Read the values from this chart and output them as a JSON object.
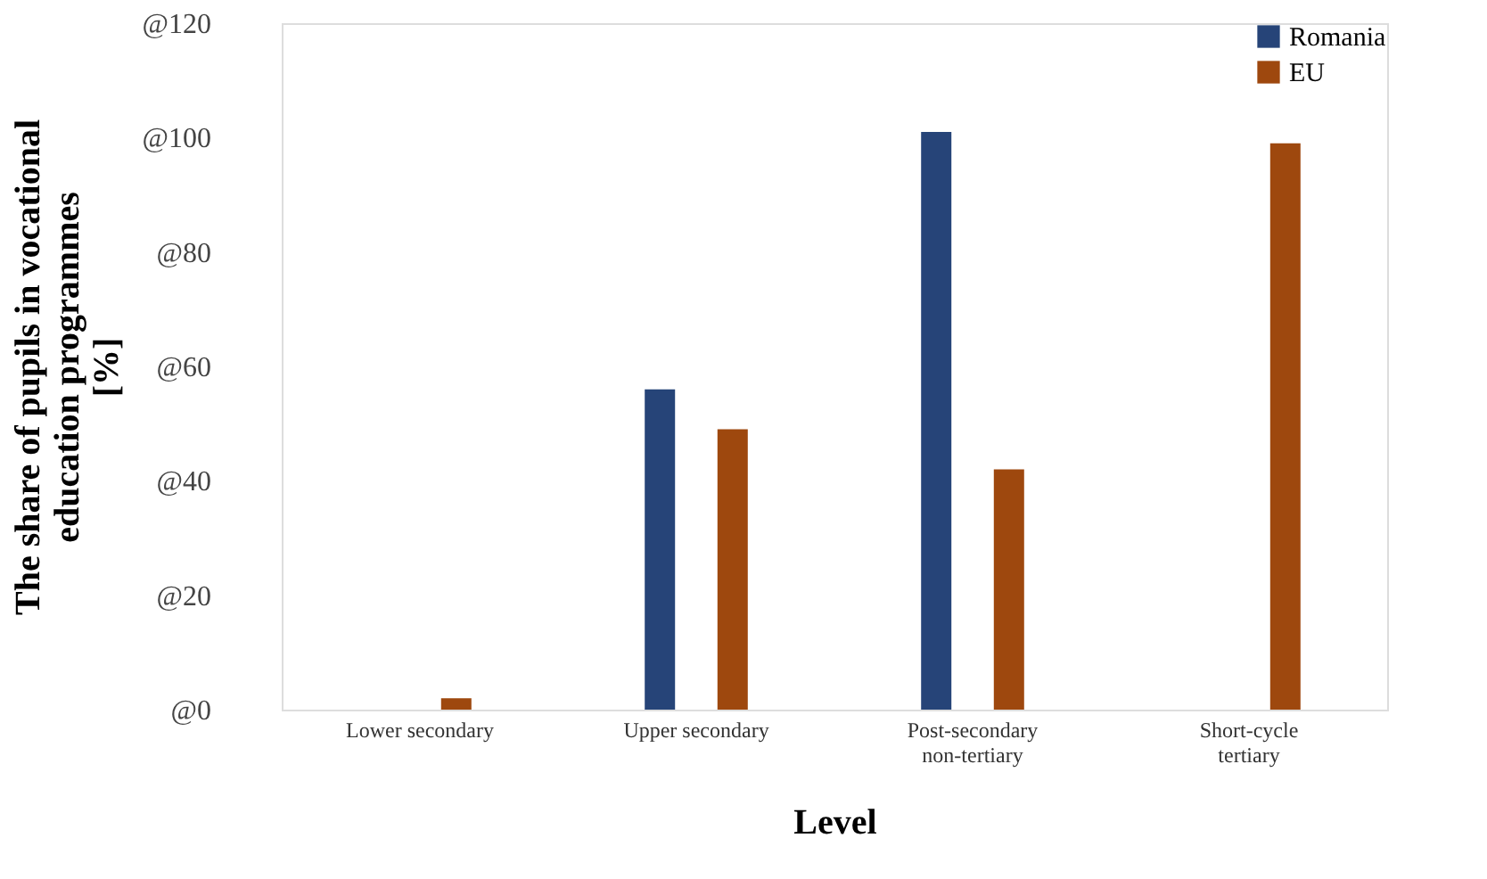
{
  "chart_data": {
    "type": "bar",
    "xlabel": "Level",
    "ylabel": "The share of pupils in vocational\neducation programmes\n[%]",
    "categories": [
      "Lower secondary",
      "Upper secondary",
      "Post-secondary\nnon-tertiary",
      "Short-cycle\ntertiary"
    ],
    "series": [
      {
        "name": "Romania",
        "color": "#264478",
        "values": [
          null,
          56,
          101,
          null
        ]
      },
      {
        "name": "EU",
        "color": "#9e480e",
        "values": [
          2,
          49,
          42,
          99
        ]
      }
    ],
    "ylim": [
      0,
      120
    ],
    "yticks": [
      {
        "value": 0,
        "label": "@0"
      },
      {
        "value": 20,
        "label": "@20"
      },
      {
        "value": 40,
        "label": "@40"
      },
      {
        "value": 60,
        "label": "@60"
      },
      {
        "value": 80,
        "label": "@80"
      },
      {
        "value": 100,
        "label": "@100"
      },
      {
        "value": 120,
        "label": "@120"
      }
    ],
    "grid": false,
    "legend": "top right"
  }
}
